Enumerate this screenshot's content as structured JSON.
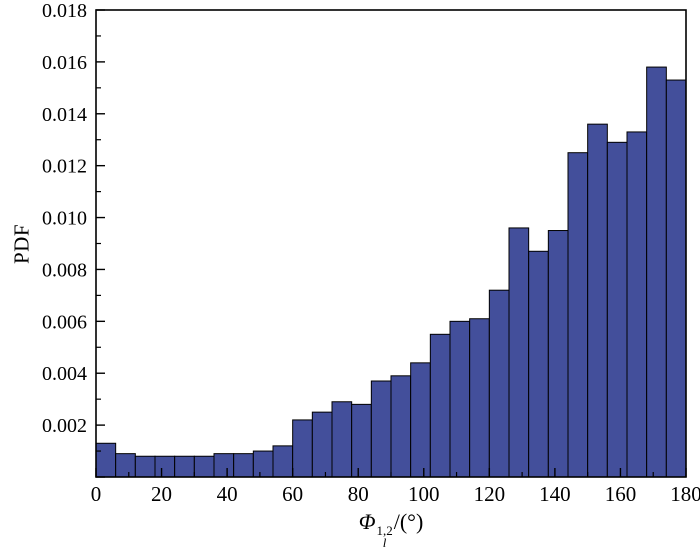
{
  "chart_data": {
    "type": "bar",
    "subtype": "histogram",
    "title": "",
    "xlabel_parts": {
      "symbol": "Φ",
      "sup": "1,2",
      "sub": "l",
      "suffix": "/(°)"
    },
    "ylabel": "PDF",
    "xlim": [
      0,
      180
    ],
    "ylim": [
      0,
      0.018
    ],
    "bin_start": 0,
    "bin_width": 6,
    "values": [
      0.0013,
      0.0009,
      0.0008,
      0.0008,
      0.0008,
      0.0008,
      0.0009,
      0.0009,
      0.001,
      0.0012,
      0.0022,
      0.0025,
      0.0029,
      0.0028,
      0.0037,
      0.0039,
      0.0044,
      0.0055,
      0.006,
      0.0061,
      0.0072,
      0.0096,
      0.0087,
      0.0095,
      0.0125,
      0.0136,
      0.0129,
      0.0133,
      0.0158,
      0.0153
    ],
    "x_major_ticks": [
      0,
      20,
      40,
      60,
      80,
      100,
      120,
      140,
      160,
      180
    ],
    "x_minor_step": 10,
    "y_major_ticks": [
      0,
      0.002,
      0.004,
      0.006,
      0.008,
      0.01,
      0.012,
      0.014,
      0.016,
      0.018
    ],
    "y_minor_step": 0.001,
    "y_label_decimals": 3,
    "grid": false,
    "legend": null,
    "colors": {
      "bar_fill": "#434f9b",
      "bar_edge": "#000000",
      "frame": "#000000",
      "tick": "#000000",
      "text": "#000000",
      "background": "#ffffff"
    }
  }
}
